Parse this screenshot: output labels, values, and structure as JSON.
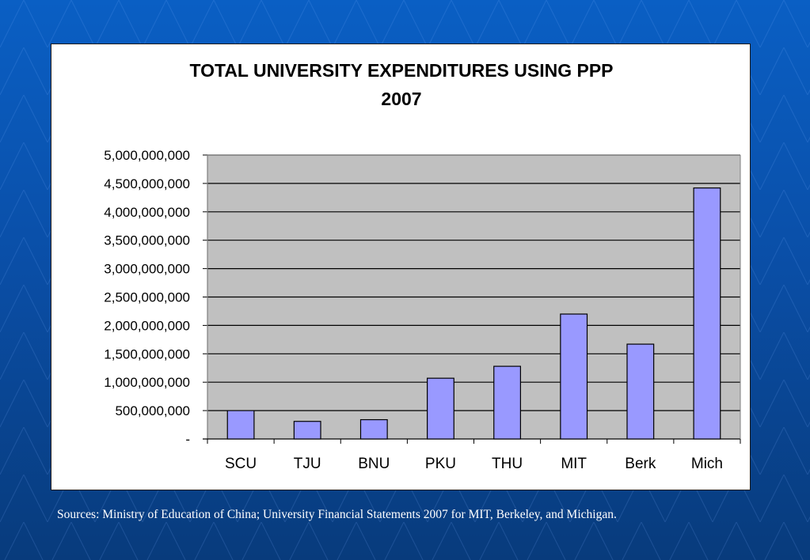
{
  "slide": {
    "background": "#0a4fa8",
    "sources": "Sources:   Ministry of Education of China; University Financial Statements 2007  for MIT, Berkeley, and Michigan."
  },
  "chart_data": {
    "type": "bar",
    "title": "TOTAL UNIVERSITY EXPENDITURES USING PPP",
    "subtitle": "2007",
    "xlabel": "",
    "ylabel": "",
    "categories": [
      "SCU",
      "TJU",
      "BNU",
      "PKU",
      "THU",
      "MIT",
      "Berk",
      "Mich"
    ],
    "values": [
      500000000,
      310000000,
      340000000,
      1070000000,
      1280000000,
      2200000000,
      1670000000,
      4420000000
    ],
    "ylim": [
      0,
      5000000000
    ],
    "yticks": [
      0,
      500000000,
      1000000000,
      1500000000,
      2000000000,
      2500000000,
      3000000000,
      3500000000,
      4000000000,
      4500000000,
      5000000000
    ],
    "ytick_labels": [
      "-",
      "500,000,000",
      "1,000,000,000",
      "1,500,000,000",
      "2,000,000,000",
      "2,500,000,000",
      "3,000,000,000",
      "3,500,000,000",
      "4,000,000,000",
      "4,500,000,000",
      "5,000,000,000"
    ],
    "grid": true,
    "legend": "none",
    "colors": {
      "bar_fill": "#9999ff",
      "bar_stroke": "#000000",
      "plot_bg": "#c0c0c0",
      "gridline": "#000000"
    }
  }
}
